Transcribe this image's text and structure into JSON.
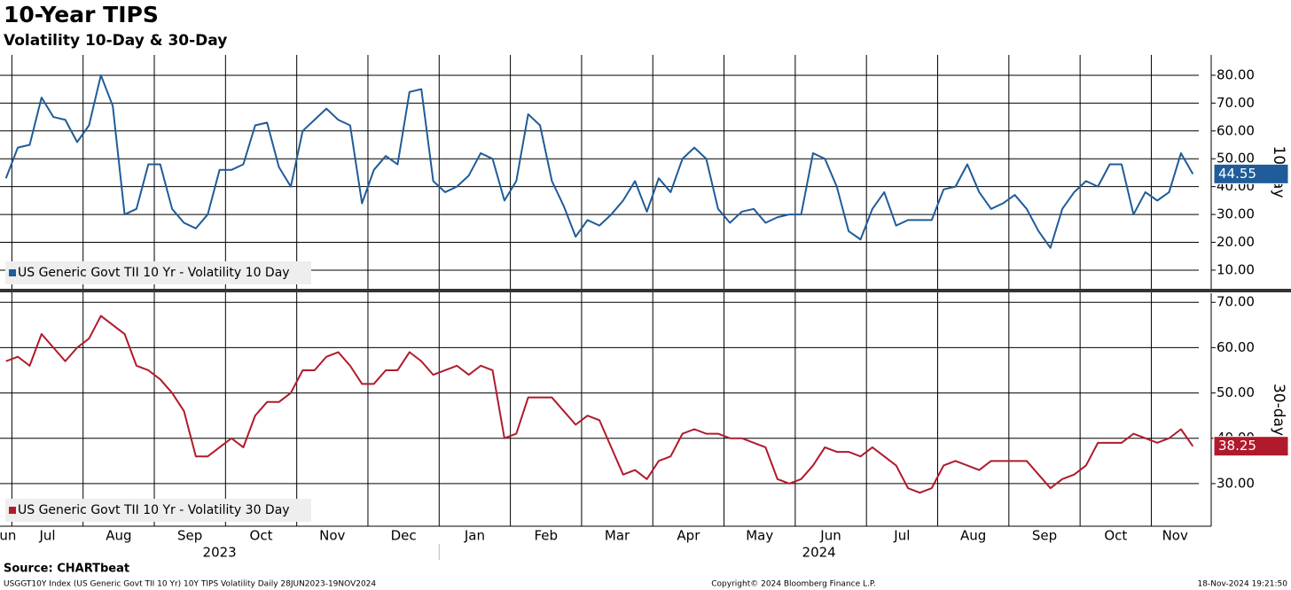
{
  "chart_data": {
    "type": "line",
    "title": "10-Year TIPS",
    "subtitle": "Volatility 10-Day & 30-Day",
    "source": "Source: CHARTbeat",
    "footer_left": "USGGT10Y Index (US Generic Govt TII 10 Yr) 10Y TIPS Volatility  Daily 28JUN2023-19NOV2024",
    "footer_center": "Copyright© 2024 Bloomberg Finance L.P.",
    "footer_right": "18-Nov-2024 19:21:50",
    "categories": [
      "Jun",
      "Jul",
      null,
      null,
      null,
      null,
      null,
      "Aug",
      null,
      null,
      null,
      null,
      null,
      "Sep",
      null,
      null,
      null,
      null,
      null,
      "Oct",
      null,
      null,
      null,
      null,
      null,
      "Nov",
      null,
      null,
      null,
      null,
      null,
      "Dec",
      null,
      null,
      null,
      null,
      null,
      "Jan",
      null,
      null,
      null,
      null,
      null,
      "Feb",
      null,
      null,
      null,
      null,
      null,
      "Mar",
      null,
      null,
      null,
      null,
      null,
      "Apr",
      null,
      null,
      null,
      null,
      null,
      "May",
      null,
      null,
      null,
      null,
      null,
      "Jun",
      null,
      null,
      null,
      null,
      null,
      "Jul",
      null,
      null,
      null,
      null,
      null,
      "Aug",
      null,
      null,
      null,
      null,
      null,
      "Sep",
      null,
      null,
      null,
      null,
      null,
      "Oct",
      null,
      null,
      null,
      null,
      null,
      "Nov",
      null,
      null,
      null
    ],
    "years": [
      "2023",
      "2024"
    ],
    "grid": true,
    "panels": [
      {
        "ylabel": "10-day",
        "ylim": [
          3.3,
          87.3
        ],
        "yticks": [
          {
            "value": 10,
            "label": "10.00"
          },
          {
            "value": 20,
            "label": "20.00"
          },
          {
            "value": 30,
            "label": "30.00"
          },
          {
            "value": 40,
            "label": "40.00"
          },
          {
            "value": 50,
            "label": "50.00"
          },
          {
            "value": 60,
            "label": "60.00"
          },
          {
            "value": 70,
            "label": "70.00"
          },
          {
            "value": 80,
            "label": "80.00"
          }
        ],
        "series": [
          {
            "name": "US Generic Govt TII 10 Yr - Volatility 10 Day",
            "color": "#1f5c99",
            "values": [
              43,
              54,
              55,
              72,
              65,
              64,
              56,
              62,
              80,
              69,
              30,
              32,
              48,
              48,
              32,
              27,
              25,
              30,
              46,
              46,
              48,
              62,
              63,
              47,
              40,
              60,
              64,
              68,
              64,
              62,
              34,
              46,
              51,
              48,
              74,
              75,
              42,
              38,
              40,
              44,
              52,
              50,
              35,
              42,
              66,
              62,
              42,
              33,
              22,
              28,
              26,
              30,
              35,
              42,
              31,
              43,
              38,
              50,
              54,
              50,
              32,
              27,
              31,
              32,
              27,
              29,
              30,
              30,
              52,
              50,
              40,
              24,
              21,
              32,
              38,
              26,
              28,
              28,
              28,
              39,
              40,
              48,
              38,
              32,
              34,
              37,
              32,
              24,
              18,
              32,
              38,
              42,
              40,
              48,
              48,
              30,
              38,
              35,
              38,
              52,
              44.55
            ]
          }
        ]
      },
      {
        "ylabel": "30-day",
        "ylim": [
          20.6,
          72
        ],
        "yticks": [
          {
            "value": 30,
            "label": "30.00"
          },
          {
            "value": 40,
            "label": "40.00"
          },
          {
            "value": 50,
            "label": "50.00"
          },
          {
            "value": 60,
            "label": "60.00"
          },
          {
            "value": 70,
            "label": "70.00"
          }
        ],
        "series": [
          {
            "name": "US Generic Govt TII 10 Yr - Volatility 30 Day",
            "color": "#b01a2c",
            "values": [
              57,
              58,
              56,
              63,
              60,
              57,
              60,
              62,
              67,
              65,
              63,
              56,
              55,
              53,
              50,
              46,
              36,
              36,
              38,
              40,
              38,
              45,
              48,
              48,
              50,
              55,
              55,
              58,
              59,
              56,
              52,
              52,
              55,
              55,
              59,
              57,
              54,
              55,
              56,
              54,
              56,
              55,
              40,
              41,
              49,
              49,
              49,
              46,
              43,
              45,
              44,
              38,
              32,
              33,
              31,
              35,
              36,
              41,
              42,
              41,
              41,
              40,
              40,
              39,
              38,
              31,
              30,
              31,
              34,
              38,
              37,
              37,
              36,
              38,
              36,
              34,
              29,
              28,
              29,
              34,
              35,
              34,
              33,
              35,
              35,
              35,
              35,
              32,
              29,
              31,
              32,
              34,
              39,
              39,
              39,
              41,
              40,
              39,
              40,
              42,
              38.25
            ]
          }
        ]
      }
    ]
  }
}
